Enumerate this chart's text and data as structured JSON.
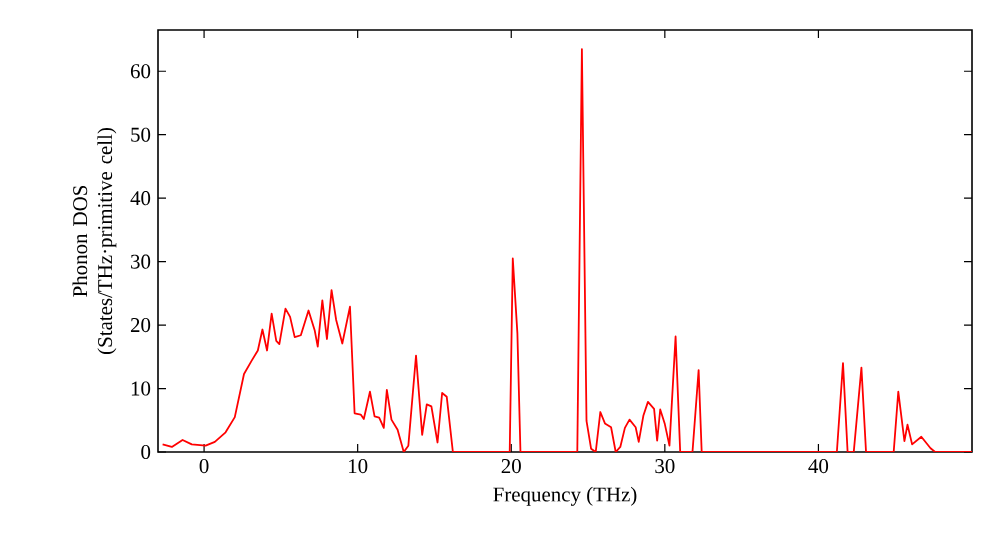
{
  "chart_data": {
    "type": "line",
    "xlabel": "Frequency (THz)",
    "ylabel": "Phonon DOS (States/THz·primitive cell)",
    "xlim": [
      -3,
      50
    ],
    "ylim": [
      0,
      66.5
    ],
    "xticks": [
      0,
      10,
      20,
      30,
      40
    ],
    "yticks": [
      0,
      10,
      20,
      30,
      40,
      50,
      60
    ],
    "grid": false,
    "marker": "none",
    "line_style": "solid",
    "series": [
      {
        "color": "#ff0000",
        "x": [
          -2.7,
          -2.1,
          -1.4,
          -0.8,
          0.1,
          0.7,
          1.4,
          2.0,
          2.6,
          3.1,
          3.5,
          3.8,
          4.1,
          4.4,
          4.7,
          4.9,
          5.3,
          5.6,
          5.9,
          6.3,
          6.8,
          7.2,
          7.4,
          7.7,
          8.0,
          8.3,
          8.6,
          9.0,
          9.5,
          9.8,
          10.2,
          10.4,
          10.8,
          11.1,
          11.4,
          11.7,
          11.9,
          12.2,
          12.6,
          13.0,
          13.3,
          13.8,
          14.2,
          14.5,
          14.8,
          15.2,
          15.5,
          15.8,
          16.2,
          19.9,
          20.1,
          20.4,
          20.6,
          24.3,
          24.6,
          24.9,
          25.2,
          25.5,
          25.8,
          26.1,
          26.5,
          26.8,
          27.1,
          27.4,
          27.7,
          28.1,
          28.3,
          28.6,
          28.9,
          29.3,
          29.5,
          29.7,
          30.0,
          30.3,
          30.7,
          31.0,
          31.8,
          32.2,
          32.4,
          41.2,
          41.6,
          41.9,
          42.3,
          42.8,
          43.1,
          44.9,
          45.2,
          45.6,
          45.8,
          46.1,
          46.7,
          47.3,
          47.6,
          50
        ],
        "values": [
          1.2,
          0.8,
          1.9,
          1.2,
          1.0,
          1.6,
          3.1,
          5.5,
          12.3,
          14.4,
          16,
          19.3,
          16,
          21.8,
          17.5,
          17,
          22.6,
          21.3,
          18.1,
          18.4,
          22.3,
          19.2,
          16.6,
          23.9,
          17.8,
          25.5,
          20.8,
          17.1,
          22.9,
          6.1,
          5.9,
          5.2,
          9.5,
          5.6,
          5.4,
          3.8,
          9.8,
          5.1,
          3.5,
          0,
          1,
          15.2,
          2.7,
          7.5,
          7.2,
          1.5,
          9.3,
          8.7,
          0,
          0,
          30.5,
          18.7,
          0,
          0,
          63.5,
          4.9,
          0.5,
          0,
          6.3,
          4.5,
          3.9,
          0,
          0.8,
          3.8,
          5.1,
          3.9,
          1.6,
          5.7,
          7.9,
          6.8,
          1.8,
          6.7,
          4.4,
          1.0,
          18.2,
          0,
          0,
          12.9,
          0,
          0,
          14.0,
          0,
          0,
          13.3,
          0,
          0,
          9.5,
          1.7,
          4.3,
          1.2,
          2.4,
          0.6,
          0,
          0
        ]
      }
    ]
  }
}
